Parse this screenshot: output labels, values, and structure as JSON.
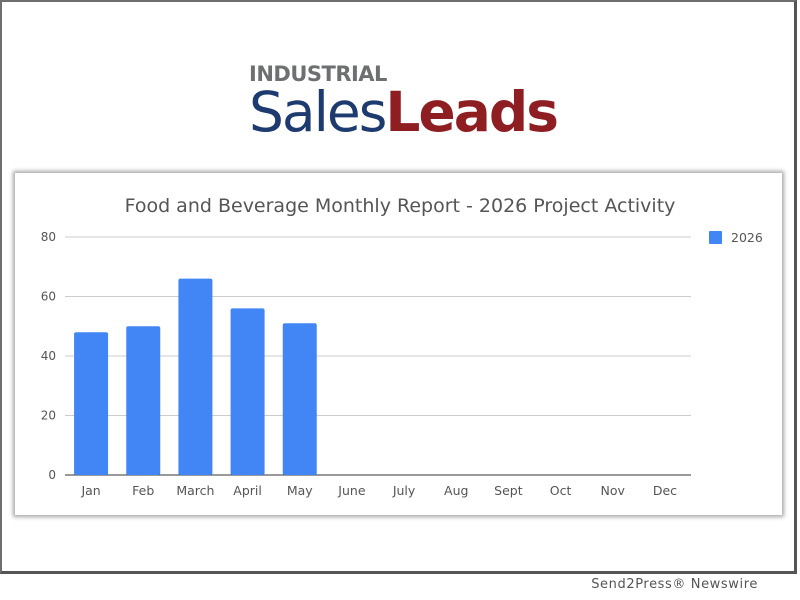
{
  "logo": {
    "top_text": "INDUSTRIAL",
    "sales_text": "Sales",
    "leads_text": "Leads",
    "colors": {
      "gray": "#6d6f71",
      "navy": "#1d3b6e",
      "maroon": "#8f1e23"
    }
  },
  "chart_data": {
    "type": "bar",
    "title": "Food and Beverage Monthly Report - 2026 Project Activity",
    "categories": [
      "Jan",
      "Feb",
      "March",
      "April",
      "May",
      "June",
      "July",
      "Aug",
      "Sept",
      "Oct",
      "Nov",
      "Dec"
    ],
    "series": [
      {
        "name": "2026",
        "values": [
          48,
          50,
          66,
          56,
          51,
          0,
          0,
          0,
          0,
          0,
          0,
          0
        ],
        "color": "#4285f4"
      }
    ],
    "ylim": [
      0,
      80
    ],
    "yticks": [
      0,
      20,
      40,
      60,
      80
    ],
    "xlabel": "",
    "ylabel": "",
    "grid": true,
    "legend_position": "right"
  },
  "footer": {
    "credit": "Send2Press® Newswire"
  }
}
